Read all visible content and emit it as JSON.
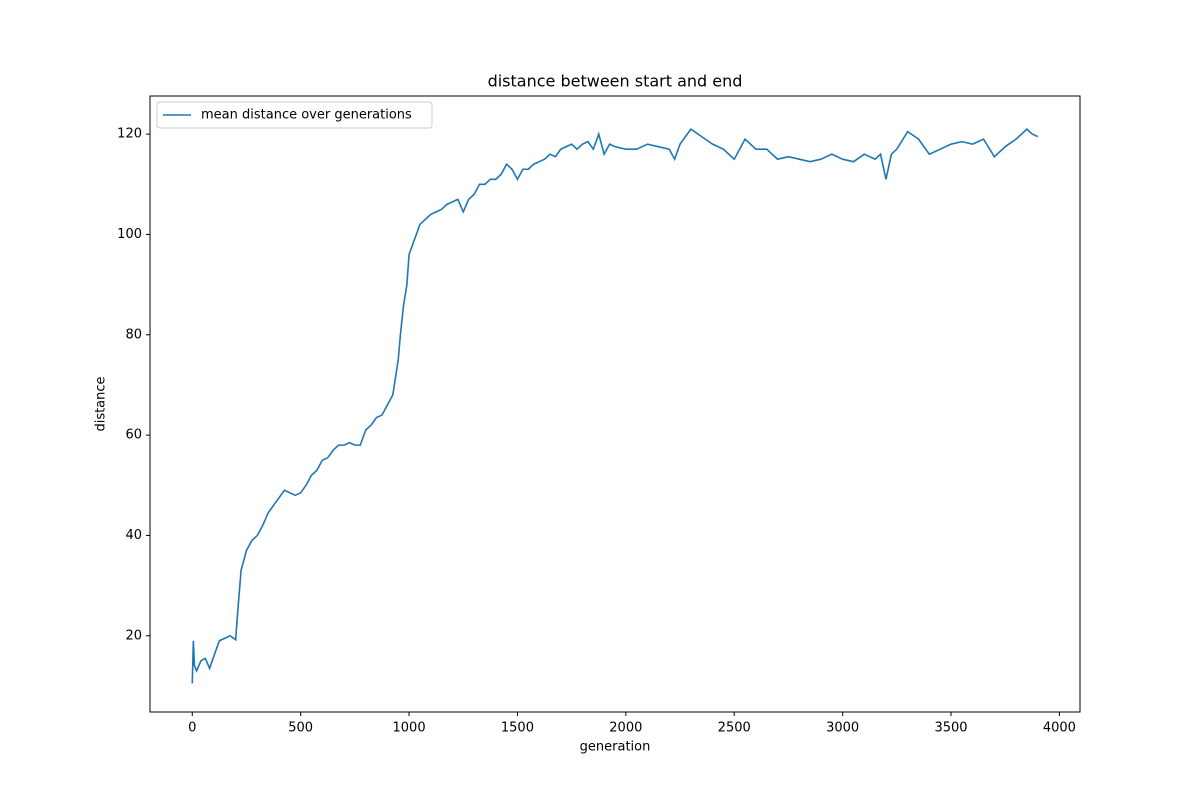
{
  "chart_data": {
    "type": "line",
    "title": "distance between start and end",
    "xlabel": "generation",
    "ylabel": "distance",
    "x": [
      0,
      5,
      10,
      20,
      40,
      60,
      80,
      100,
      125,
      150,
      175,
      200,
      210,
      225,
      250,
      275,
      300,
      325,
      350,
      375,
      400,
      425,
      450,
      475,
      500,
      525,
      550,
      575,
      600,
      625,
      650,
      675,
      700,
      725,
      750,
      775,
      800,
      825,
      850,
      875,
      900,
      925,
      950,
      960,
      975,
      990,
      1000,
      1025,
      1050,
      1075,
      1100,
      1125,
      1150,
      1175,
      1200,
      1225,
      1250,
      1275,
      1300,
      1325,
      1350,
      1375,
      1400,
      1425,
      1450,
      1475,
      1500,
      1525,
      1550,
      1575,
      1600,
      1625,
      1650,
      1675,
      1700,
      1725,
      1750,
      1775,
      1800,
      1825,
      1850,
      1875,
      1900,
      1925,
      1950,
      2000,
      2050,
      2100,
      2150,
      2200,
      2225,
      2250,
      2300,
      2350,
      2400,
      2450,
      2500,
      2550,
      2600,
      2650,
      2700,
      2750,
      2800,
      2850,
      2900,
      2950,
      3000,
      3050,
      3100,
      3150,
      3175,
      3200,
      3225,
      3250,
      3300,
      3350,
      3400,
      3450,
      3500,
      3550,
      3600,
      3650,
      3700,
      3750,
      3800,
      3850,
      3875,
      3900
    ],
    "series": [
      {
        "name": "mean distance over generations",
        "color": "#1f77b4",
        "values": [
          10.5,
          19,
          14,
          13,
          15,
          15.5,
          13.5,
          16,
          19,
          19.5,
          20,
          19.2,
          25,
          33,
          37,
          39,
          40,
          42,
          44.5,
          46,
          47.5,
          49,
          48.5,
          48,
          48.5,
          50,
          52,
          53,
          55,
          55.5,
          57,
          58,
          58,
          58.5,
          58,
          58,
          61,
          62,
          63.5,
          64,
          66,
          68,
          75,
          80,
          86,
          90,
          96,
          99,
          102,
          103,
          104,
          104.5,
          105,
          106,
          106.5,
          107,
          104.5,
          107,
          108,
          110,
          110,
          111,
          111,
          112,
          114,
          113,
          111,
          113,
          113,
          114,
          114.5,
          115,
          116,
          115.5,
          117,
          117.5,
          118,
          117,
          118,
          118.5,
          117,
          120,
          116,
          118,
          117.5,
          117,
          117,
          118,
          117.5,
          117,
          115,
          118,
          121,
          119.5,
          118,
          117,
          115,
          119,
          117,
          117,
          115,
          115.5,
          115,
          114.5,
          115,
          116,
          115,
          114.5,
          116,
          115,
          116,
          111,
          116,
          117,
          120.5,
          119,
          116,
          117,
          118,
          118.5,
          118,
          119,
          115.5,
          117.5,
          119,
          121,
          120,
          119.5
        ]
      }
    ],
    "xlim": [
      -195,
      4095
    ],
    "ylim": [
      4.8,
      127.6
    ],
    "xticks": [
      0,
      500,
      1000,
      1500,
      2000,
      2500,
      3000,
      3500,
      4000
    ],
    "yticks": [
      20,
      40,
      60,
      80,
      100,
      120
    ],
    "legend": "upper left"
  }
}
